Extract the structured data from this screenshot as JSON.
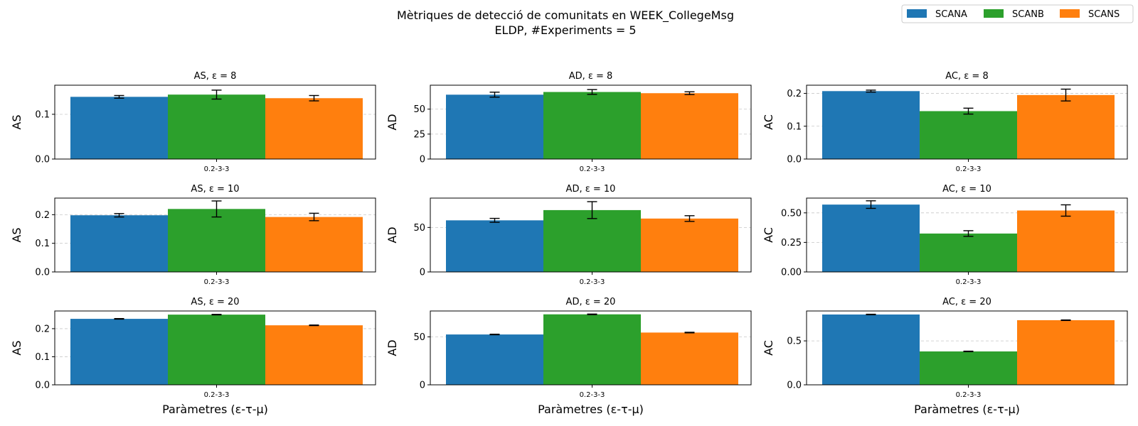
{
  "figure": {
    "title_line1": "Mètriques de detecció de comunitats en WEEK_CollegeMsg",
    "title_line2": "ELDP, #Experiments = 5"
  },
  "legend": {
    "placement": "upper-right",
    "entries": [
      {
        "name": "SCANA",
        "color": "#1f77b4"
      },
      {
        "name": "SCANB",
        "color": "#2ca02c"
      },
      {
        "name": "SCANS",
        "color": "#ff7f0e"
      }
    ]
  },
  "chart_data": [
    {
      "type": "bar",
      "title": "AS, ε = 8",
      "xlabel": "",
      "ylabel": "AS",
      "categories": [
        "0.2-3-3"
      ],
      "ylim": [
        0,
        0.165
      ],
      "yticks": [
        0.0,
        0.1
      ],
      "ytick_labels": [
        "0.0",
        "0.1"
      ],
      "grid": "y-dashed",
      "series": [
        {
          "name": "SCANA",
          "values": [
            0.139
          ],
          "errors": [
            0.003
          ]
        },
        {
          "name": "SCANB",
          "values": [
            0.144
          ],
          "errors": [
            0.01
          ]
        },
        {
          "name": "SCANS",
          "values": [
            0.136
          ],
          "errors": [
            0.006
          ]
        }
      ]
    },
    {
      "type": "bar",
      "title": "AD, ε = 8",
      "xlabel": "",
      "ylabel": "AD",
      "categories": [
        "0.2-3-3"
      ],
      "ylim": [
        0,
        74
      ],
      "yticks": [
        0,
        25,
        50
      ],
      "ytick_labels": [
        "0",
        "25",
        "50"
      ],
      "grid": "y-dashed",
      "series": [
        {
          "name": "SCANA",
          "values": [
            64.5
          ],
          "errors": [
            2.5
          ]
        },
        {
          "name": "SCANB",
          "values": [
            67.2
          ],
          "errors": [
            2.4
          ]
        },
        {
          "name": "SCANS",
          "values": [
            66.0
          ],
          "errors": [
            1.4
          ]
        }
      ]
    },
    {
      "type": "bar",
      "title": "AC, ε = 8",
      "xlabel": "",
      "ylabel": "AC",
      "categories": [
        "0.2-3-3"
      ],
      "ylim": [
        0,
        0.225
      ],
      "yticks": [
        0.0,
        0.1,
        0.2
      ],
      "ytick_labels": [
        "0.0",
        "0.1",
        "0.2"
      ],
      "grid": "y-dashed",
      "series": [
        {
          "name": "SCANA",
          "values": [
            0.207
          ],
          "errors": [
            0.003
          ]
        },
        {
          "name": "SCANB",
          "values": [
            0.146
          ],
          "errors": [
            0.009
          ]
        },
        {
          "name": "SCANS",
          "values": [
            0.195
          ],
          "errors": [
            0.018
          ]
        }
      ]
    },
    {
      "type": "bar",
      "title": "AS, ε = 10",
      "xlabel": "",
      "ylabel": "AS",
      "categories": [
        "0.2-3-3"
      ],
      "ylim": [
        0,
        0.258
      ],
      "yticks": [
        0.0,
        0.1,
        0.2
      ],
      "ytick_labels": [
        "0.0",
        "0.1",
        "0.2"
      ],
      "grid": "y-dashed",
      "series": [
        {
          "name": "SCANA",
          "values": [
            0.198
          ],
          "errors": [
            0.006
          ]
        },
        {
          "name": "SCANB",
          "values": [
            0.22
          ],
          "errors": [
            0.028
          ]
        },
        {
          "name": "SCANS",
          "values": [
            0.192
          ],
          "errors": [
            0.013
          ]
        }
      ]
    },
    {
      "type": "bar",
      "title": "AD, ε = 10",
      "xlabel": "",
      "ylabel": "AD",
      "categories": [
        "0.2-3-3"
      ],
      "ylim": [
        0,
        83
      ],
      "yticks": [
        0,
        50
      ],
      "ytick_labels": [
        "0",
        "50"
      ],
      "grid": "y-dashed",
      "series": [
        {
          "name": "SCANA",
          "values": [
            58
          ],
          "errors": [
            2.2
          ]
        },
        {
          "name": "SCANB",
          "values": [
            69.5
          ],
          "errors": [
            9.5
          ]
        },
        {
          "name": "SCANS",
          "values": [
            60
          ],
          "errors": [
            3.2
          ]
        }
      ]
    },
    {
      "type": "bar",
      "title": "AC, ε = 10",
      "xlabel": "",
      "ylabel": "AC",
      "categories": [
        "0.2-3-3"
      ],
      "ylim": [
        0,
        0.625
      ],
      "yticks": [
        0.0,
        0.25,
        0.5
      ],
      "ytick_labels": [
        "0.00",
        "0.25",
        "0.50"
      ],
      "grid": "y-dashed",
      "series": [
        {
          "name": "SCANA",
          "values": [
            0.57
          ],
          "errors": [
            0.032
          ]
        },
        {
          "name": "SCANB",
          "values": [
            0.325
          ],
          "errors": [
            0.024
          ]
        },
        {
          "name": "SCANS",
          "values": [
            0.52
          ],
          "errors": [
            0.048
          ]
        }
      ]
    },
    {
      "type": "bar",
      "title": "AS, ε = 20",
      "xlabel": "Paràmetres (ε-τ-μ)",
      "ylabel": "AS",
      "categories": [
        "0.2-3-3"
      ],
      "ylim": [
        0,
        0.263
      ],
      "yticks": [
        0.0,
        0.1,
        0.2
      ],
      "ytick_labels": [
        "0.0",
        "0.1",
        "0.2"
      ],
      "grid": "y-dashed",
      "series": [
        {
          "name": "SCANA",
          "values": [
            0.235
          ],
          "errors": [
            0.001
          ]
        },
        {
          "name": "SCANB",
          "values": [
            0.25
          ],
          "errors": [
            0.001
          ]
        },
        {
          "name": "SCANS",
          "values": [
            0.212
          ],
          "errors": [
            0.001
          ]
        }
      ]
    },
    {
      "type": "bar",
      "title": "AD, ε = 20",
      "xlabel": "Paràmetres (ε-τ-μ)",
      "ylabel": "AD",
      "categories": [
        "0.2-3-3"
      ],
      "ylim": [
        0,
        77
      ],
      "yticks": [
        0,
        50
      ],
      "ytick_labels": [
        "0",
        "50"
      ],
      "grid": "y-dashed",
      "series": [
        {
          "name": "SCANA",
          "values": [
            52.5
          ],
          "errors": [
            0.3
          ]
        },
        {
          "name": "SCANB",
          "values": [
            73.5
          ],
          "errors": [
            0.3
          ]
        },
        {
          "name": "SCANS",
          "values": [
            54.5
          ],
          "errors": [
            0.3
          ]
        }
      ]
    },
    {
      "type": "bar",
      "title": "AC, ε = 20",
      "xlabel": "Paràmetres (ε-τ-μ)",
      "ylabel": "AC",
      "categories": [
        "0.2-3-3"
      ],
      "ylim": [
        0,
        0.84
      ],
      "yticks": [
        0.0,
        0.5
      ],
      "ytick_labels": [
        "0.0",
        "0.5"
      ],
      "grid": "y-dashed",
      "series": [
        {
          "name": "SCANA",
          "values": [
            0.8
          ],
          "errors": [
            0.003
          ]
        },
        {
          "name": "SCANB",
          "values": [
            0.38
          ],
          "errors": [
            0.003
          ]
        },
        {
          "name": "SCANS",
          "values": [
            0.735
          ],
          "errors": [
            0.003
          ]
        }
      ]
    }
  ]
}
